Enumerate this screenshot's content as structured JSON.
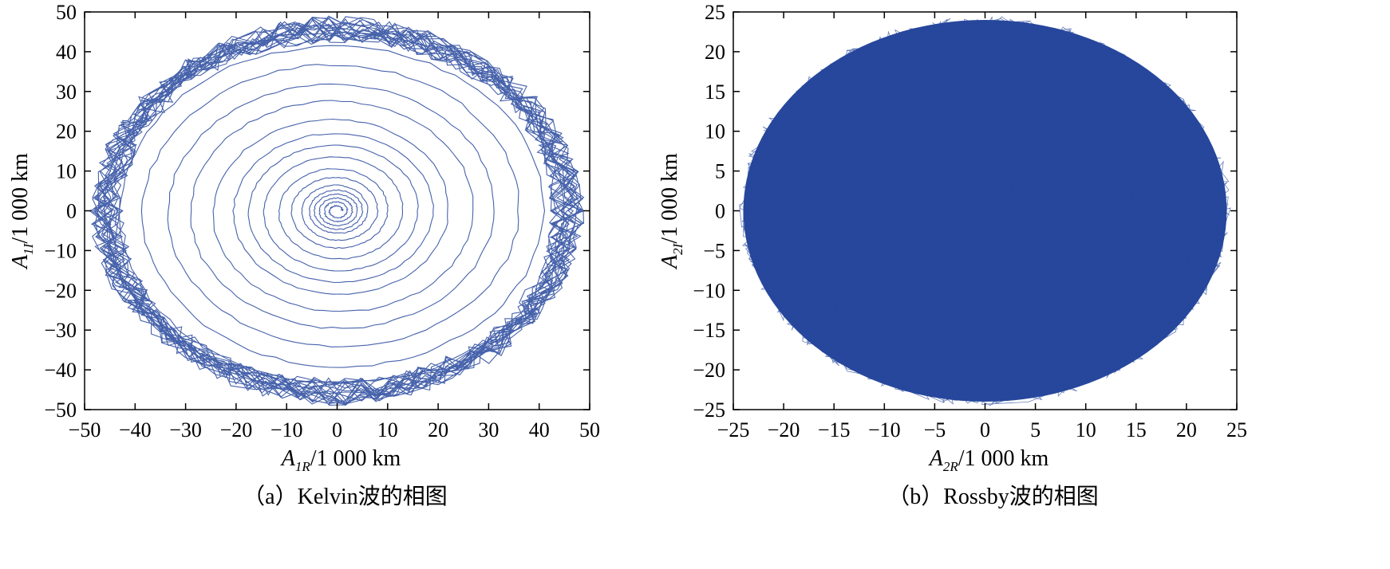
{
  "colors": {
    "trajectory": "#26479c",
    "axis": "#000000"
  },
  "chart_data": [
    {
      "type": "line",
      "caption": "（a）Kelvin波的相图",
      "xlabel": {
        "symbol": "A",
        "sub": "1R",
        "unit": "/1 000 km"
      },
      "ylabel": {
        "symbol": "A",
        "sub": "1I",
        "unit": "/1 000 km"
      },
      "xlim": [
        -50,
        50
      ],
      "ylim": [
        -50,
        50
      ],
      "xticks": [
        "−50",
        "−40",
        "−30",
        "−20",
        "−10",
        "0",
        "10",
        "20",
        "30",
        "40",
        "50"
      ],
      "yticks": [
        "50",
        "40",
        "30",
        "20",
        "10",
        "0",
        "−10",
        "−20",
        "−30",
        "−40",
        "−50"
      ],
      "xtick_values": [
        -50,
        -40,
        -30,
        -20,
        -10,
        0,
        10,
        20,
        30,
        40,
        50
      ],
      "ytick_values": [
        50,
        40,
        30,
        20,
        10,
        0,
        -10,
        -20,
        -30,
        -40,
        -50
      ],
      "series": [
        {
          "pattern": "outward spiral from origin to a dense limit ring",
          "center": [
            0,
            0
          ],
          "approx_ring_radii": [
            1,
            2,
            3,
            4,
            5,
            6,
            8,
            10,
            13,
            16,
            19,
            22,
            27,
            31,
            36,
            41,
            45,
            47
          ],
          "outer_radius": [
            47,
            47
          ]
        }
      ]
    },
    {
      "type": "line",
      "caption": "（b）Rossby波的相图",
      "xlabel": {
        "symbol": "A",
        "sub": "2R",
        "unit": "/1 000 km"
      },
      "ylabel": {
        "symbol": "A",
        "sub": "2I",
        "unit": "/1 000 km"
      },
      "xlim": [
        -25,
        25
      ],
      "ylim": [
        -25,
        25
      ],
      "xticks": [
        "−25",
        "−20",
        "−15",
        "−10",
        "−5",
        "0",
        "5",
        "10",
        "15",
        "20",
        "25"
      ],
      "yticks": [
        "25",
        "20",
        "15",
        "10",
        "5",
        "0",
        "−5",
        "−10",
        "−15",
        "−20",
        "−25"
      ],
      "xtick_values": [
        -25,
        -20,
        -15,
        -10,
        -5,
        0,
        5,
        10,
        15,
        20,
        25
      ],
      "ytick_values": [
        25,
        20,
        15,
        10,
        5,
        0,
        -5,
        -10,
        -15,
        -20,
        -25
      ],
      "series": [
        {
          "pattern": "densely filled elliptical region",
          "center": [
            0,
            0
          ],
          "outer_radius": [
            24,
            24
          ]
        }
      ]
    }
  ]
}
